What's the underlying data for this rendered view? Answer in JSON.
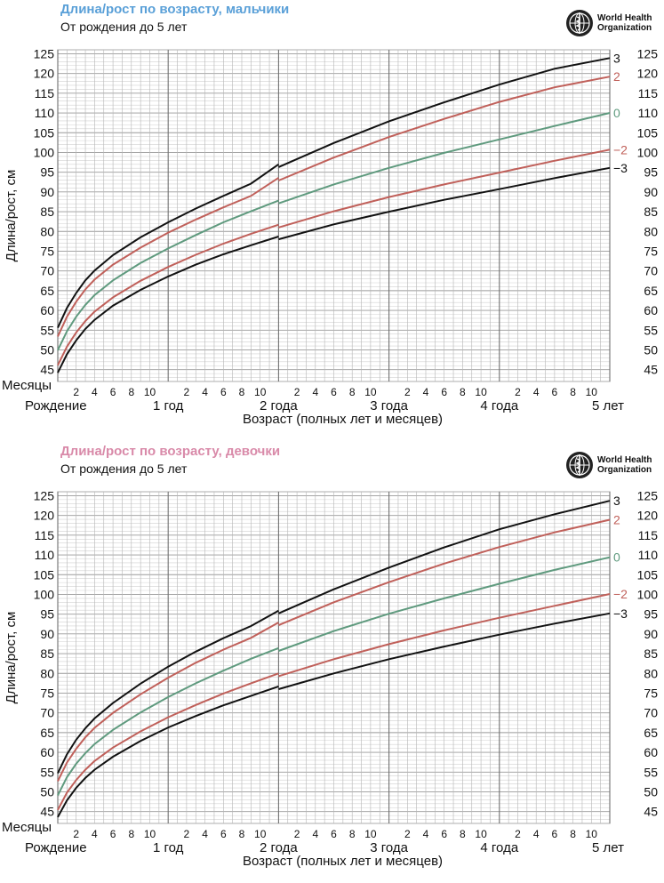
{
  "chart_data": [
    {
      "type": "line",
      "title": "Длина/рост по возрасту, мальчики",
      "subtitle": "От рождения до 5 лет",
      "logo_text": [
        "World Health",
        "Organization"
      ],
      "ylabel": "Длина/рост, см",
      "xlabel": "Возраст (полных лет и месяцев)",
      "months_label": "Месяцы",
      "ylim": [
        42,
        126
      ],
      "xlim": [
        0,
        60
      ],
      "yticks": [
        45,
        50,
        55,
        60,
        65,
        70,
        75,
        80,
        85,
        90,
        95,
        100,
        105,
        110,
        115,
        120,
        125
      ],
      "month_tick_labels": [
        "2",
        "4",
        "6",
        "8",
        "10"
      ],
      "year_labels": [
        "Рождение",
        "1 год",
        "2 года",
        "3 года",
        "4 года",
        "5 лет"
      ],
      "grid": true,
      "accent_color": "#5aa0d8",
      "series": [
        {
          "name": "3",
          "color": "#111111",
          "x": [
            0,
            1,
            2,
            3,
            4,
            6,
            9,
            12,
            15,
            18,
            21,
            24,
            24,
            30,
            36,
            42,
            48,
            54,
            60
          ],
          "values": [
            55.6,
            60.6,
            64.4,
            67.6,
            70.1,
            74.0,
            78.5,
            82.3,
            85.8,
            89.0,
            92.1,
            97.0,
            96.3,
            102.4,
            107.9,
            112.7,
            117.2,
            121.2,
            123.9
          ]
        },
        {
          "name": "2",
          "color": "#c0605a",
          "x": [
            0,
            1,
            2,
            3,
            4,
            6,
            9,
            12,
            15,
            18,
            21,
            24,
            24,
            30,
            36,
            42,
            48,
            54,
            60
          ],
          "values": [
            53.4,
            58.4,
            62.2,
            65.3,
            67.8,
            71.6,
            75.9,
            79.7,
            83.0,
            86.1,
            89.0,
            93.6,
            92.9,
            98.7,
            103.9,
            108.5,
            112.8,
            116.5,
            119.2
          ]
        },
        {
          "name": "0",
          "color": "#5f9a7e",
          "x": [
            0,
            1,
            2,
            3,
            4,
            6,
            9,
            12,
            15,
            18,
            21,
            24,
            24,
            30,
            36,
            42,
            48,
            54,
            60
          ],
          "values": [
            49.9,
            54.7,
            58.4,
            61.4,
            63.9,
            67.6,
            72.0,
            75.7,
            79.1,
            82.3,
            85.1,
            87.8,
            87.1,
            91.9,
            96.1,
            99.9,
            103.3,
            106.7,
            110.0
          ]
        },
        {
          "name": "−2",
          "color": "#c0605a",
          "x": [
            0,
            1,
            2,
            3,
            4,
            6,
            9,
            12,
            15,
            18,
            21,
            24,
            24,
            30,
            36,
            42,
            48,
            54,
            60
          ],
          "values": [
            46.1,
            50.8,
            54.4,
            57.3,
            59.7,
            63.3,
            67.5,
            71.0,
            74.1,
            76.9,
            79.4,
            81.7,
            81.0,
            85.1,
            88.7,
            91.9,
            94.9,
            97.9,
            100.7
          ]
        },
        {
          "name": "−3",
          "color": "#111111",
          "x": [
            0,
            1,
            2,
            3,
            4,
            6,
            9,
            12,
            15,
            18,
            21,
            24,
            24,
            30,
            36,
            42,
            48,
            54,
            60
          ],
          "values": [
            44.2,
            48.9,
            52.4,
            55.3,
            57.6,
            61.2,
            65.2,
            68.6,
            71.6,
            74.2,
            76.5,
            78.7,
            78.0,
            81.8,
            85.0,
            88.0,
            90.7,
            93.5,
            96.1
          ]
        }
      ]
    },
    {
      "type": "line",
      "title": "Длина/рост по возрасту, девочки",
      "subtitle": "От рождения до 5 лет",
      "logo_text": [
        "World Health",
        "Organization"
      ],
      "ylabel": "Длина/рост, см",
      "xlabel": "Возраст (полных лет и месяцев)",
      "months_label": "Месяцы",
      "ylim": [
        42,
        126
      ],
      "xlim": [
        0,
        60
      ],
      "yticks": [
        45,
        50,
        55,
        60,
        65,
        70,
        75,
        80,
        85,
        90,
        95,
        100,
        105,
        110,
        115,
        120,
        125
      ],
      "month_tick_labels": [
        "2",
        "4",
        "6",
        "8",
        "10"
      ],
      "year_labels": [
        "Рождение",
        "1 год",
        "2 года",
        "3 года",
        "4 года",
        "5 лет"
      ],
      "grid": true,
      "accent_color": "#d98aa9",
      "series": [
        {
          "name": "3",
          "color": "#111111",
          "x": [
            0,
            1,
            2,
            3,
            4,
            6,
            9,
            12,
            15,
            18,
            21,
            24,
            24,
            30,
            36,
            42,
            48,
            54,
            60
          ],
          "values": [
            54.7,
            59.5,
            63.2,
            66.1,
            68.6,
            72.5,
            77.4,
            81.7,
            85.5,
            88.9,
            92.0,
            95.9,
            95.2,
            101.3,
            106.8,
            111.9,
            116.5,
            120.3,
            123.7
          ]
        },
        {
          "name": "2",
          "color": "#c0605a",
          "x": [
            0,
            1,
            2,
            3,
            4,
            6,
            9,
            12,
            15,
            18,
            21,
            24,
            24,
            30,
            36,
            42,
            48,
            54,
            60
          ],
          "values": [
            52.7,
            57.4,
            60.9,
            63.8,
            66.2,
            70.0,
            74.7,
            78.9,
            82.7,
            86.0,
            89.0,
            92.9,
            92.2,
            98.0,
            103.1,
            107.8,
            112.0,
            115.7,
            118.9
          ]
        },
        {
          "name": "0",
          "color": "#5f9a7e",
          "x": [
            0,
            1,
            2,
            3,
            4,
            6,
            9,
            12,
            15,
            18,
            21,
            24,
            24,
            30,
            36,
            42,
            48,
            54,
            60
          ],
          "values": [
            49.1,
            53.7,
            57.1,
            59.8,
            62.1,
            65.7,
            70.1,
            74.0,
            77.5,
            80.7,
            83.7,
            86.4,
            85.7,
            90.7,
            95.1,
            99.0,
            102.7,
            106.2,
            109.4
          ]
        },
        {
          "name": "−2",
          "color": "#c0605a",
          "x": [
            0,
            1,
            2,
            3,
            4,
            6,
            9,
            12,
            15,
            18,
            21,
            24,
            24,
            30,
            36,
            42,
            48,
            54,
            60
          ],
          "values": [
            45.4,
            49.8,
            53.0,
            55.6,
            57.8,
            61.2,
            65.3,
            68.9,
            72.0,
            74.9,
            77.5,
            80.0,
            79.3,
            83.6,
            87.4,
            90.9,
            94.1,
            97.1,
            100.1
          ]
        },
        {
          "name": "−3",
          "color": "#111111",
          "x": [
            0,
            1,
            2,
            3,
            4,
            6,
            9,
            12,
            15,
            18,
            21,
            24,
            24,
            30,
            36,
            42,
            48,
            54,
            60
          ],
          "values": [
            43.6,
            47.8,
            51.0,
            53.5,
            55.6,
            58.9,
            62.9,
            66.3,
            69.2,
            71.9,
            74.3,
            76.7,
            76.0,
            80.0,
            83.6,
            86.8,
            89.8,
            92.6,
            95.2
          ]
        }
      ]
    }
  ]
}
